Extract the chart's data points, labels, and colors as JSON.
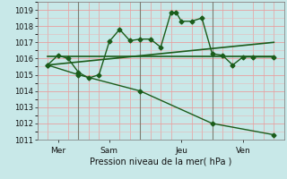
{
  "background_color": "#c8e8e8",
  "plot_bg_color": "#c8e8e8",
  "grid_major_color": "#e8a0a0",
  "grid_minor_color": "#e8b8b8",
  "line_color": "#1a5c1a",
  "vline_color": "#556655",
  "xlabel": "Pression niveau de la mer( hPa )",
  "ylim": [
    1011,
    1019.5
  ],
  "xlim": [
    -0.5,
    11.5
  ],
  "yticks": [
    1011,
    1012,
    1013,
    1014,
    1015,
    1016,
    1017,
    1018,
    1019
  ],
  "day_labels": [
    "Mer",
    "Sam",
    "Jeu",
    "Ven"
  ],
  "day_positions": [
    0.5,
    3.0,
    6.5,
    9.5
  ],
  "vline_positions": [
    1.5,
    4.5,
    8.0
  ],
  "series": [
    {
      "x": [
        0,
        0.5,
        1,
        1.5,
        2,
        2.5,
        3,
        3.5,
        4,
        4.5,
        5,
        5.5,
        6,
        6.25,
        6.5,
        7,
        7.5,
        8,
        8.5,
        9,
        9.5,
        10,
        11
      ],
      "y": [
        1015.6,
        1016.2,
        1016.0,
        1015.15,
        1014.8,
        1015.0,
        1017.05,
        1017.8,
        1017.1,
        1017.2,
        1017.2,
        1016.7,
        1018.85,
        1018.85,
        1018.3,
        1018.3,
        1018.5,
        1016.3,
        1016.2,
        1015.6,
        1016.1,
        1016.1,
        1016.1
      ],
      "marker": "D",
      "markersize": 2.5,
      "linewidth": 1.0
    },
    {
      "x": [
        0,
        11
      ],
      "y": [
        1016.15,
        1016.15
      ],
      "marker": null,
      "markersize": 0,
      "linewidth": 1.2
    },
    {
      "x": [
        0,
        11
      ],
      "y": [
        1015.6,
        1017.0
      ],
      "marker": null,
      "markersize": 0,
      "linewidth": 1.2
    },
    {
      "x": [
        0,
        1.5,
        4.5,
        8.0,
        11
      ],
      "y": [
        1015.6,
        1015.0,
        1014.0,
        1012.0,
        1011.3
      ],
      "marker": "D",
      "markersize": 2.5,
      "linewidth": 1.0
    }
  ]
}
